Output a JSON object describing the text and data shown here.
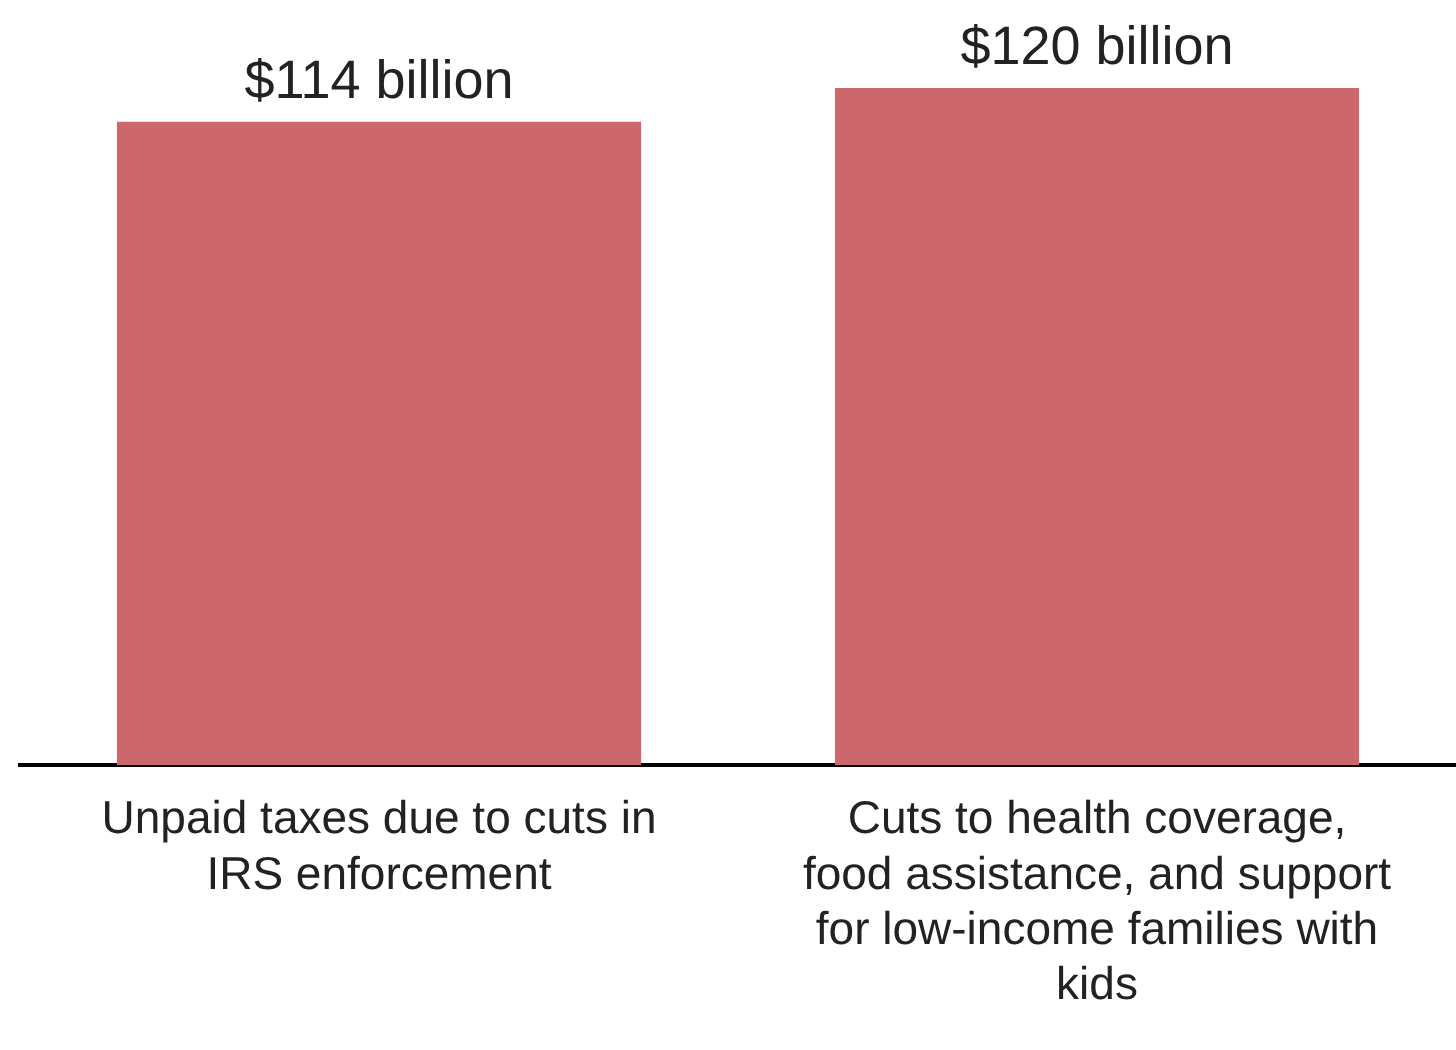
{
  "chart_data": {
    "type": "bar",
    "categories": [
      "Unpaid taxes due to cuts in IRS enforcement",
      "Cuts to health coverage, food assistance, and support for low-income families with kids"
    ],
    "values": [
      114,
      120
    ],
    "value_labels": [
      "$114 billion",
      "$120 billion"
    ],
    "color": "#cc686b"
  }
}
